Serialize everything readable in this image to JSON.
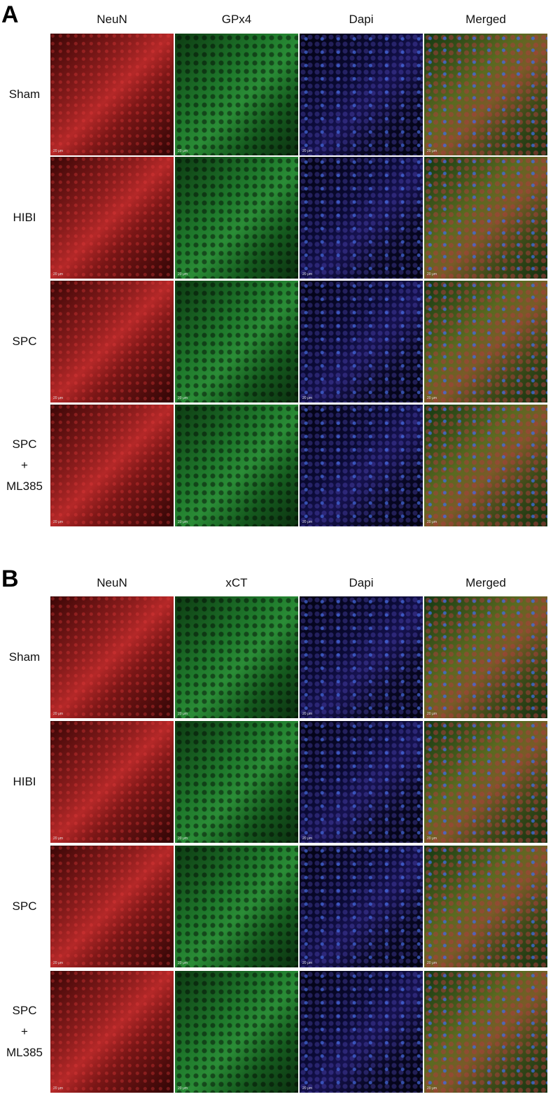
{
  "panels": [
    {
      "letter": "A",
      "columns": [
        "NeuN",
        "GPx4",
        "Dapi",
        "Merged"
      ],
      "rows": [
        {
          "label": [
            "Sham"
          ]
        },
        {
          "label": [
            "HIBI"
          ]
        },
        {
          "label": [
            "SPC"
          ]
        },
        {
          "label": [
            "SPC",
            "+",
            "ML385"
          ]
        }
      ]
    },
    {
      "letter": "B",
      "columns": [
        "NeuN",
        "xCT",
        "Dapi",
        "Merged"
      ],
      "rows": [
        {
          "label": [
            "Sham"
          ]
        },
        {
          "label": [
            "HIBI"
          ]
        },
        {
          "label": [
            "SPC"
          ]
        },
        {
          "label": [
            "SPC",
            "+",
            "ML385"
          ]
        }
      ]
    }
  ],
  "scale_bar": "20 μm",
  "channel_colors": {
    "NeuN": "#b42828",
    "GPx4": "#2a8c36",
    "xCT": "#2a8c36",
    "Dapi": "#3a46c8"
  }
}
